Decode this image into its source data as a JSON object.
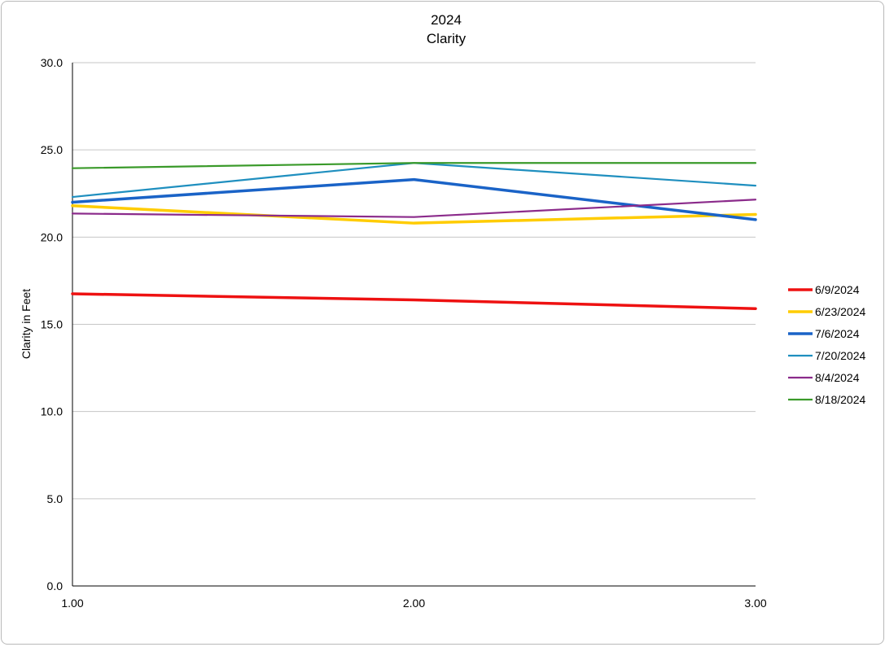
{
  "chart_data": {
    "type": "line",
    "title": "2024",
    "subtitle": "Clarity",
    "xlabel": "",
    "ylabel": "Clarity in Feet",
    "x": [
      1,
      2,
      3
    ],
    "x_tick_labels": [
      "1.00",
      "2.00",
      "3.00"
    ],
    "xlim": [
      1,
      3
    ],
    "ylim": [
      0,
      30
    ],
    "y_tick_labels": [
      "0.0",
      "5.0",
      "10.0",
      "15.0",
      "20.0",
      "25.0",
      "30.0"
    ],
    "grid": true,
    "legend_position": "right",
    "series": [
      {
        "name": "6/9/2024",
        "color": "#ee1111",
        "values": [
          16.75,
          16.4,
          15.9
        ]
      },
      {
        "name": "6/23/2024",
        "color": "#ffcc00",
        "values": [
          21.8,
          20.8,
          21.3
        ]
      },
      {
        "name": "7/6/2024",
        "color": "#1a63c7",
        "values": [
          22.0,
          23.3,
          21.0
        ]
      },
      {
        "name": "7/20/2024",
        "color": "#1f8fbf",
        "values": [
          22.3,
          24.25,
          22.95
        ]
      },
      {
        "name": "8/4/2024",
        "color": "#8b2b8b",
        "values": [
          21.35,
          21.15,
          22.15
        ]
      },
      {
        "name": "8/18/2024",
        "color": "#3a9a2a",
        "values": [
          23.95,
          24.25,
          24.25
        ]
      }
    ]
  }
}
